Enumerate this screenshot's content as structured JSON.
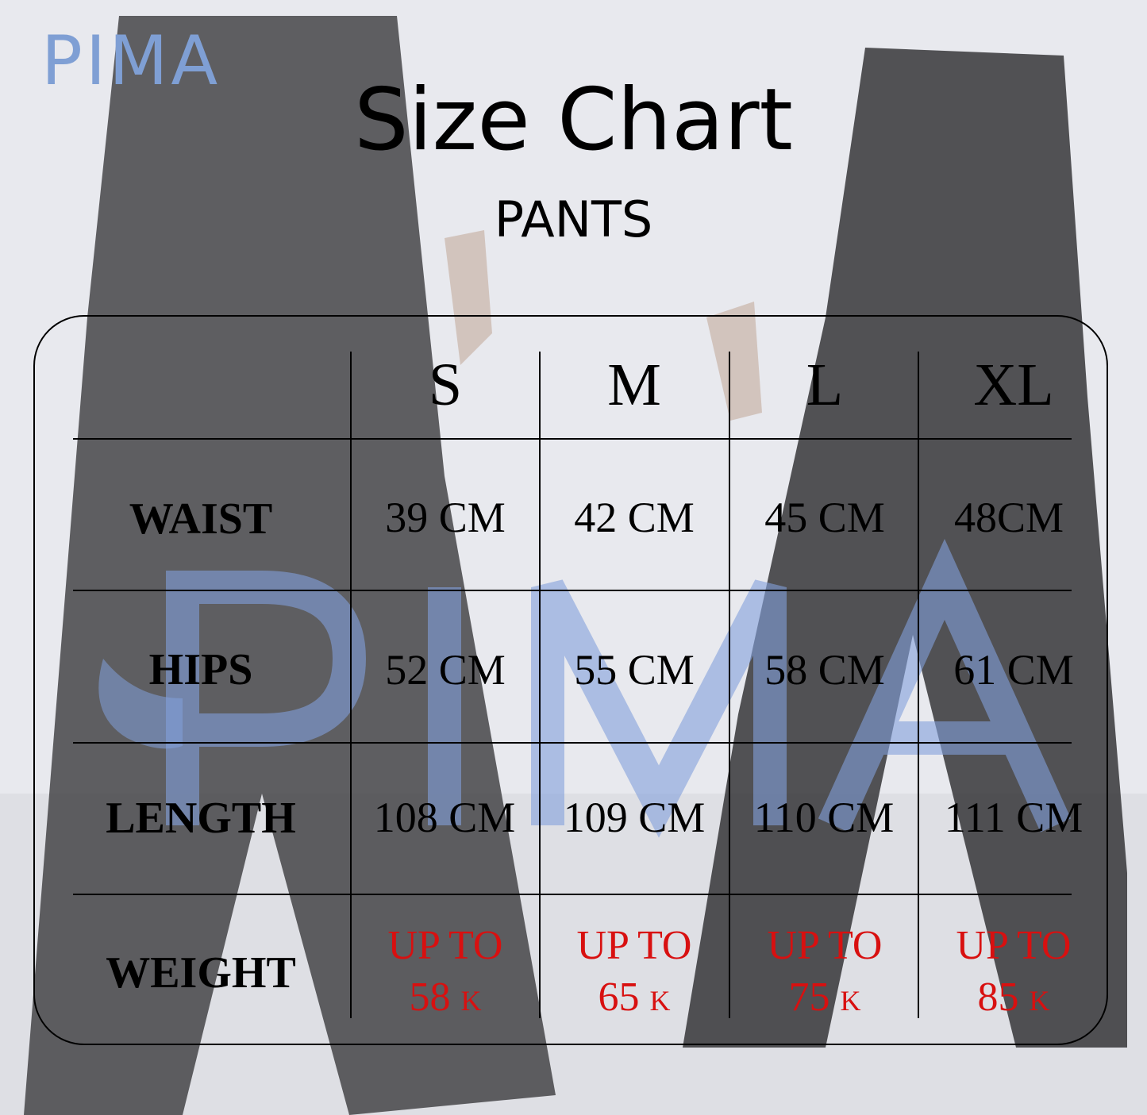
{
  "logo": "PIMA",
  "title": "Size Chart",
  "subtitle": "PANTS",
  "watermark": "PIMA",
  "colors": {
    "logo": "#7f9fd4",
    "weight_text": "#d81010"
  },
  "table": {
    "sizes": [
      "S",
      "M",
      "L",
      "XL"
    ],
    "rows": [
      {
        "label": "WAIST",
        "values": [
          "39 CM",
          "42 CM",
          "45 CM",
          "48CM"
        ]
      },
      {
        "label": "HIPS",
        "values": [
          "52 CM",
          "55 CM",
          "58 CM",
          "61 CM"
        ]
      },
      {
        "label": "LENGTH",
        "values": [
          "108 CM",
          "109 CM",
          "110 CM",
          "111 CM"
        ]
      }
    ],
    "weight": {
      "label": "WEIGHT",
      "prefix": "UP TO",
      "values": [
        "58",
        "65",
        "75",
        "85"
      ],
      "unit": "K"
    }
  }
}
